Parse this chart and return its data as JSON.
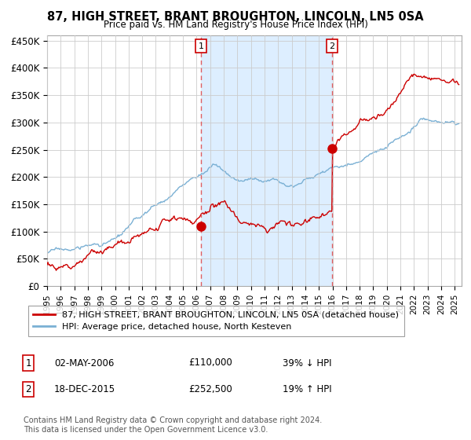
{
  "title": "87, HIGH STREET, BRANT BROUGHTON, LINCOLN, LN5 0SA",
  "subtitle": "Price paid vs. HM Land Registry's House Price Index (HPI)",
  "ylabel_ticks": [
    "£0",
    "£50K",
    "£100K",
    "£150K",
    "£200K",
    "£250K",
    "£300K",
    "£350K",
    "£400K",
    "£450K"
  ],
  "ytick_values": [
    0,
    50000,
    100000,
    150000,
    200000,
    250000,
    300000,
    350000,
    400000,
    450000
  ],
  "ylim": [
    0,
    460000
  ],
  "xlim_start": 1995.0,
  "xlim_end": 2025.5,
  "sale1_x": 2006.33,
  "sale1_y": 110000,
  "sale1_label": "1",
  "sale2_x": 2015.96,
  "sale2_y": 252500,
  "sale2_label": "2",
  "sale_color": "#cc0000",
  "hpi_color": "#7ab0d4",
  "shade_color": "#ddeeff",
  "vline_color": "#e05050",
  "legend_entry1": "87, HIGH STREET, BRANT BROUGHTON, LINCOLN, LN5 0SA (detached house)",
  "legend_entry2": "HPI: Average price, detached house, North Kesteven",
  "annotation1_date": "02-MAY-2006",
  "annotation1_price": "£110,000",
  "annotation1_hpi": "39% ↓ HPI",
  "annotation2_date": "18-DEC-2015",
  "annotation2_price": "£252,500",
  "annotation2_hpi": "19% ↑ HPI",
  "footer": "Contains HM Land Registry data © Crown copyright and database right 2024.\nThis data is licensed under the Open Government Licence v3.0.",
  "background_color": "#ffffff",
  "grid_color": "#cccccc"
}
